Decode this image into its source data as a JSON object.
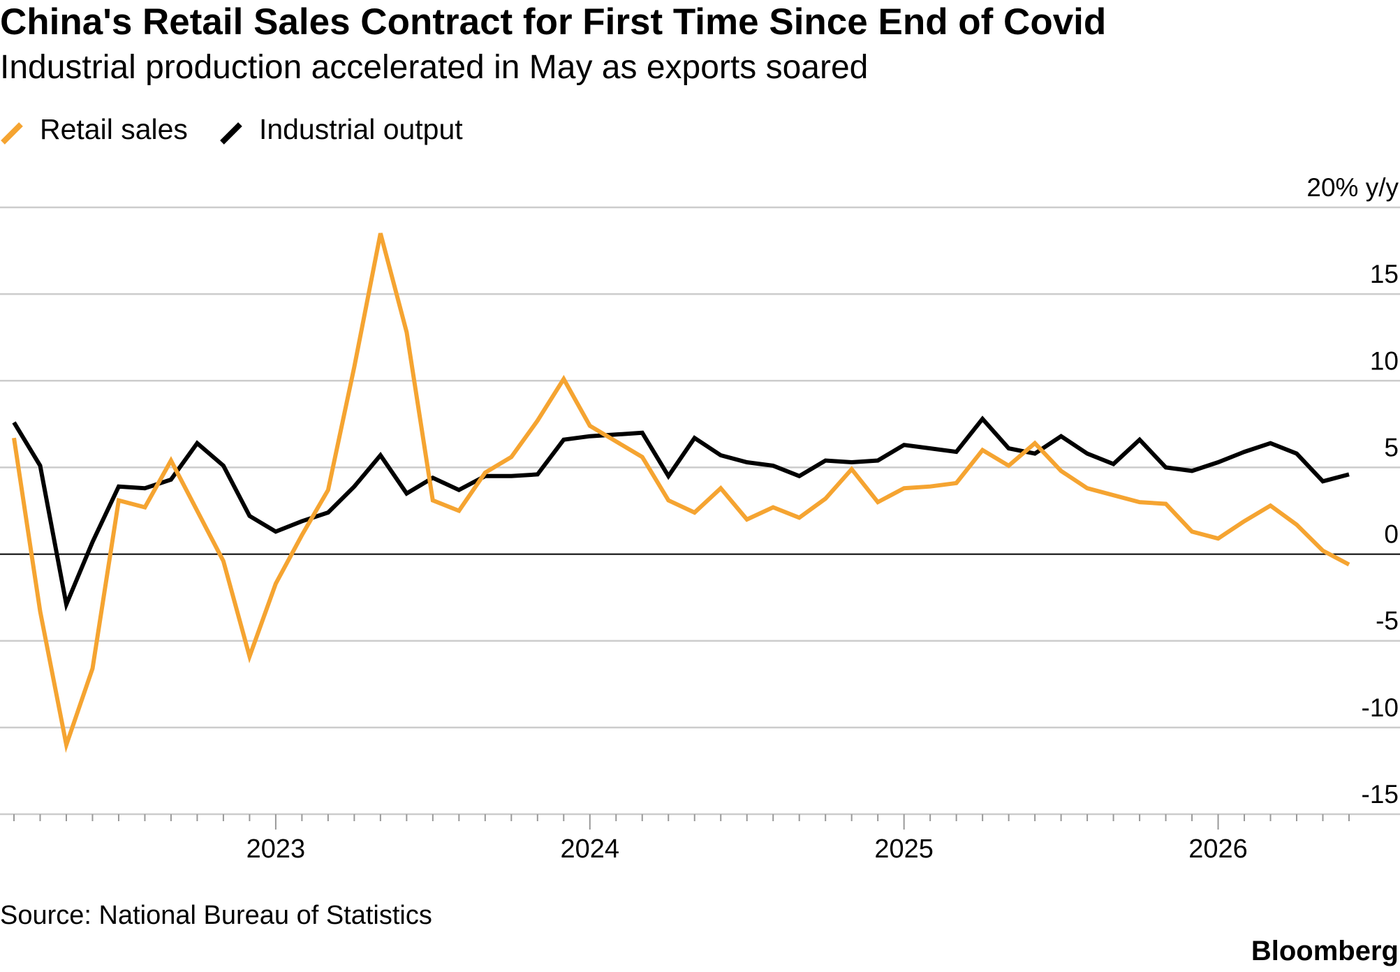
{
  "chart_data": {
    "type": "line",
    "title": "China's Retail Sales Contract for First Time Since End of Covid",
    "subtitle": "Industrial production accelerated in May as exports soared",
    "source": "Source: National Bureau of Statistics",
    "brand": "Bloomberg",
    "categories": [
      null,
      null,
      null,
      null,
      null,
      null,
      null,
      null,
      null,
      null,
      "2023",
      null,
      null,
      null,
      null,
      null,
      null,
      null,
      null,
      null,
      null,
      null,
      "2024",
      null,
      null,
      null,
      null,
      null,
      null,
      null,
      null,
      null,
      null,
      null,
      "2025",
      null,
      null,
      null,
      null,
      null,
      null,
      null,
      null,
      null,
      null,
      null,
      "2026",
      null,
      null,
      null,
      null,
      null
    ],
    "series": [
      {
        "name": "Retail sales",
        "color": "#f5a431",
        "values": [
          6.7,
          -3.3,
          -11.0,
          -6.6,
          3.1,
          2.7,
          5.4,
          2.5,
          -0.4,
          -5.9,
          -1.7,
          1.1,
          3.7,
          10.8,
          18.5,
          12.8,
          3.1,
          2.5,
          4.7,
          5.6,
          7.7,
          10.1,
          7.4,
          6.5,
          5.6,
          3.1,
          2.4,
          3.8,
          2.0,
          2.7,
          2.1,
          3.2,
          4.9,
          3.0,
          3.8,
          3.9,
          4.1,
          6.0,
          5.1,
          6.4,
          4.8,
          3.8,
          3.4,
          3.0,
          2.9,
          1.3,
          0.9,
          1.9,
          2.8,
          1.7,
          0.2,
          -0.6
        ]
      },
      {
        "name": "Industrial output",
        "color": "#000000",
        "values": [
          7.6,
          5.1,
          -2.9,
          0.7,
          3.9,
          3.8,
          4.3,
          6.4,
          5.1,
          2.2,
          1.3,
          1.9,
          2.4,
          3.9,
          5.7,
          3.5,
          4.4,
          3.7,
          4.5,
          4.5,
          4.6,
          6.6,
          6.8,
          6.9,
          7.0,
          4.5,
          6.7,
          5.7,
          5.3,
          5.1,
          4.5,
          5.4,
          5.3,
          5.4,
          6.3,
          6.1,
          5.9,
          7.8,
          6.1,
          5.8,
          6.8,
          5.8,
          5.2,
          6.6,
          5.0,
          4.8,
          5.3,
          5.9,
          6.4,
          5.8,
          4.2,
          4.6
        ]
      }
    ],
    "ylim": [
      -15,
      20
    ],
    "yticks": [
      {
        "value": 20,
        "label": "20% y/y"
      },
      15,
      10,
      5,
      0,
      -5,
      -10,
      -15
    ],
    "grid": true
  }
}
